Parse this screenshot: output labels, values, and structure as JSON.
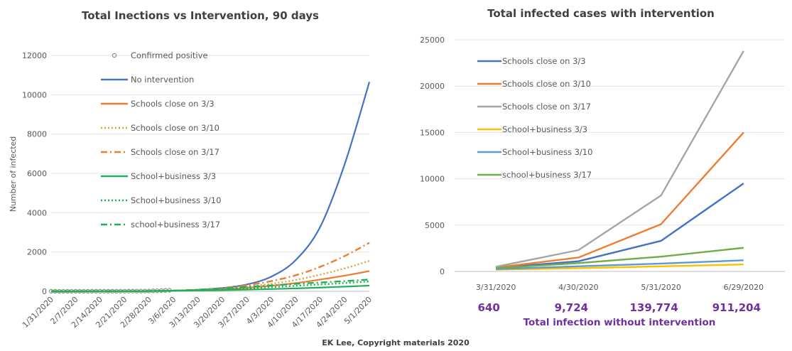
{
  "footer": "EK Lee, Copyright materials 2020",
  "chart_data": [
    {
      "type": "line",
      "title": "Total Inections vs Intervention, 90 days",
      "ylabel": "Number of infected",
      "xlabel": "",
      "ylim": [
        0,
        12000
      ],
      "yticks": [
        "0",
        "2000",
        "4000",
        "6000",
        "8000",
        "10000",
        "12000"
      ],
      "categories": [
        "1/31/2020",
        "2/7/2020",
        "2/14/2020",
        "2/21/2020",
        "2/28/2020",
        "3/6/2020",
        "3/13/2020",
        "3/20/2020",
        "3/27/2020",
        "4/3/2020",
        "4/10/2020",
        "4/17/2020",
        "4/24/2020",
        "5/1/2020"
      ],
      "legend_position": "left-inside",
      "series": [
        {
          "name": "Confirmed positive",
          "style": "markers",
          "color": "#8c8c8c",
          "values": [
            2,
            3,
            5,
            8,
            15,
            60,
            null,
            null,
            null,
            null,
            null,
            null,
            null,
            null
          ]
        },
        {
          "name": "No intervention",
          "style": "solid",
          "color": "#4472c4",
          "values": [
            0,
            1,
            3,
            6,
            15,
            35,
            80,
            170,
            350,
            750,
            1600,
            3300,
            6500,
            10650
          ]
        },
        {
          "name": "Schools close on 3/3",
          "style": "solid",
          "color": "#ed7d31",
          "values": [
            0,
            1,
            3,
            6,
            15,
            30,
            60,
            110,
            180,
            280,
            420,
            600,
            800,
            1030
          ]
        },
        {
          "name": "Schools close on 3/10",
          "style": "dotted",
          "color": "#d9a441",
          "values": [
            0,
            1,
            3,
            6,
            15,
            35,
            75,
            140,
            240,
            380,
            580,
            850,
            1170,
            1550
          ]
        },
        {
          "name": "Schools close on 3/17",
          "style": "dashdot",
          "color": "#ed7d31",
          "values": [
            0,
            1,
            3,
            6,
            15,
            35,
            80,
            170,
            310,
            520,
            820,
            1250,
            1800,
            2470
          ]
        },
        {
          "name": "School+business 3/3",
          "style": "solid",
          "color": "#21b05a",
          "values": [
            0,
            1,
            3,
            6,
            15,
            25,
            40,
            60,
            85,
            115,
            150,
            190,
            240,
            290
          ]
        },
        {
          "name": "School+business 3/10",
          "style": "dotted",
          "color": "#21b05a",
          "values": [
            0,
            1,
            3,
            6,
            15,
            30,
            60,
            100,
            150,
            210,
            280,
            350,
            420,
            500
          ]
        },
        {
          "name": "school+business 3/17",
          "style": "dashdot",
          "color": "#21b05a",
          "values": [
            0,
            1,
            3,
            6,
            15,
            35,
            80,
            150,
            230,
            300,
            380,
            450,
            520,
            600
          ]
        }
      ]
    },
    {
      "type": "line",
      "title": "Total infected cases with intervention",
      "ylim": [
        0,
        25000
      ],
      "yticks": [
        "0",
        "5000",
        "10000",
        "15000",
        "20000",
        "25000"
      ],
      "categories": [
        "3/31/2020",
        "4/30/2020",
        "5/31/2020",
        "6/29/2020"
      ],
      "legend_position": "left-inside",
      "series": [
        {
          "name": "Schools close on 3/3",
          "color": "#4472c4",
          "values": [
            400,
            1100,
            3300,
            9500
          ]
        },
        {
          "name": "Schools close on 3/10",
          "color": "#ed7d31",
          "values": [
            420,
            1500,
            5100,
            15000
          ]
        },
        {
          "name": "Schools close on 3/17",
          "color": "#a5a5a5",
          "values": [
            500,
            2300,
            8200,
            23800
          ]
        },
        {
          "name": "School+business 3/3",
          "color": "#ffc000",
          "values": [
            200,
            350,
            550,
            750
          ]
        },
        {
          "name": "School+business 3/10",
          "color": "#5b9bd5",
          "values": [
            250,
            550,
            850,
            1200
          ]
        },
        {
          "name": "school+business 3/17",
          "color": "#70ad47",
          "values": [
            350,
            900,
            1600,
            2550
          ]
        }
      ],
      "totals_without_intervention": [
        "640",
        "9,724",
        "139,774",
        "911,204"
      ],
      "totals_caption": "Total infection without intervention"
    }
  ]
}
